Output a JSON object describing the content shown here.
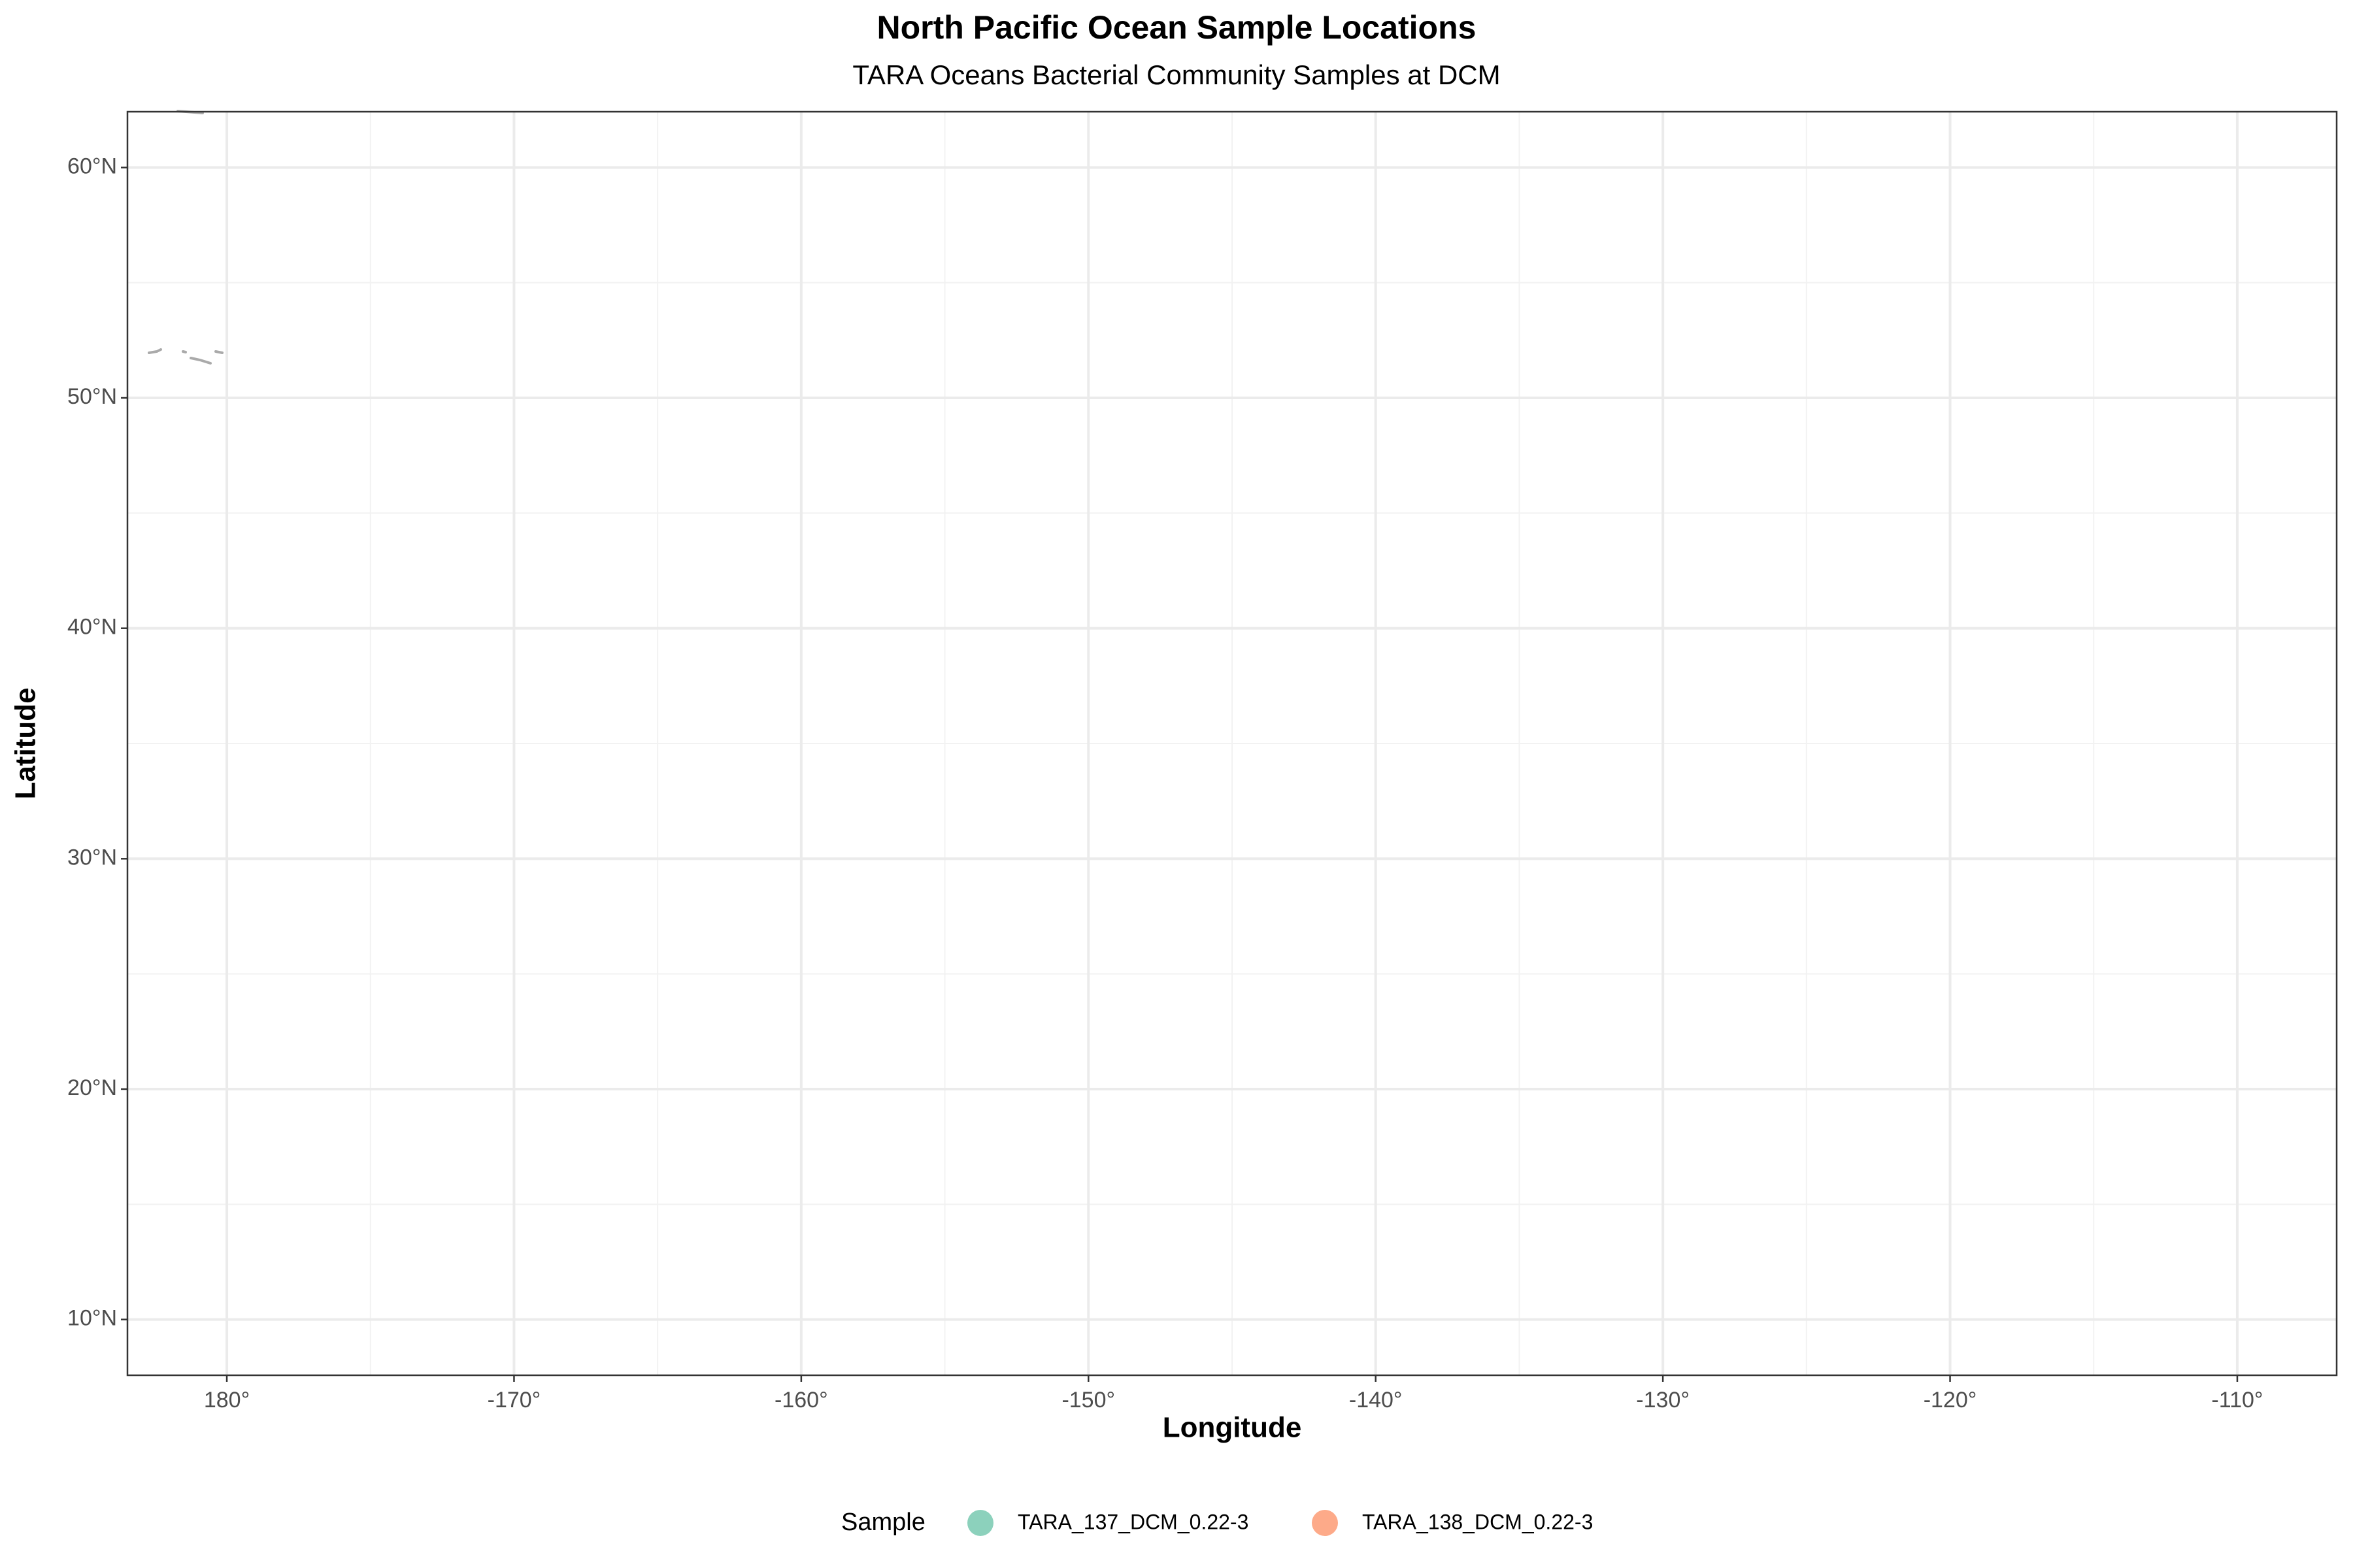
{
  "chart_data": {
    "type": "scatter",
    "title": "North Pacific Ocean Sample Locations",
    "subtitle": "TARA Oceans Bacterial Community Samples at DCM",
    "x_label": "Longitude",
    "y_label": "Latitude",
    "legend_title": "Sample",
    "legend": "bottom",
    "grid": true,
    "series": [
      {
        "name": "TARA_137_DCM_0.22-3",
        "color": "#66c2a5"
      },
      {
        "name": "TARA_138_DCM_0.22-3",
        "color": "#fc8d62"
      }
    ],
    "xlim": [
      -183.46,
      -106.54
    ],
    "xticks": [
      {
        "value": -180,
        "label": "180°"
      },
      {
        "value": -170,
        "label": "-170°"
      },
      {
        "value": -160,
        "label": "-160°"
      },
      {
        "value": -150,
        "label": "-150°"
      },
      {
        "value": -140,
        "label": "-140°"
      },
      {
        "value": -130,
        "label": "-130°"
      },
      {
        "value": -120,
        "label": "-120°"
      },
      {
        "value": -110,
        "label": "-110°"
      }
    ],
    "ylim": [
      7.58,
      62.42
    ],
    "yticks": [
      {
        "value": 10,
        "label": "10°N"
      },
      {
        "value": 20,
        "label": "20°N"
      },
      {
        "value": 30,
        "label": "30°N"
      },
      {
        "value": 40,
        "label": "40°N"
      },
      {
        "value": 50,
        "label": "50°N"
      },
      {
        "value": 60,
        "label": "60°N"
      }
    ]
  }
}
